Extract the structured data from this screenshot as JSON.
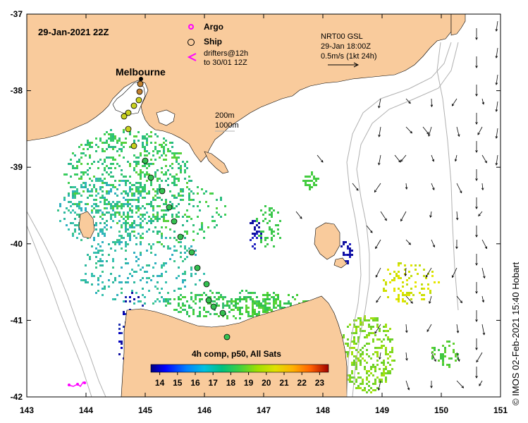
{
  "map": {
    "timestamp": "29-Jan-2021 22Z",
    "city_label": "Melbourne",
    "legend": {
      "argo_label": "Argo",
      "ship_label": "Ship",
      "drifters_line1": "drifters@12h",
      "drifters_line2": "to 30/01 12Z",
      "argo_color": "#ff00ff",
      "drifter_color": "#ff00ff"
    },
    "current_info": {
      "line1": "NRT00 GSL",
      "line2": "29-Jan 18:00Z",
      "line3": "0.5m/s (1kt 24h)"
    },
    "depth_legend": {
      "line1": "200m",
      "line2": "1000m"
    },
    "colorbar": {
      "title": "4h comp, p50, All Sats",
      "ticks": [
        "14",
        "15",
        "16",
        "17",
        "18",
        "19",
        "20",
        "21",
        "22",
        "23"
      ],
      "vmin": 13.5,
      "vmax": 23.5
    },
    "axes": {
      "x_ticks": [
        "143",
        "144",
        "145",
        "146",
        "147",
        "148",
        "149",
        "150",
        "151"
      ],
      "y_ticks": [
        "-37",
        "-38",
        "-39",
        "-40",
        "-41",
        "-42"
      ]
    },
    "credit": "© IMOS 02-Feb-2021 15:40 Hobart",
    "colors": {
      "land": "#f9cb9c",
      "sea": "#ffffff",
      "contour": "#b0b0b0"
    }
  }
}
